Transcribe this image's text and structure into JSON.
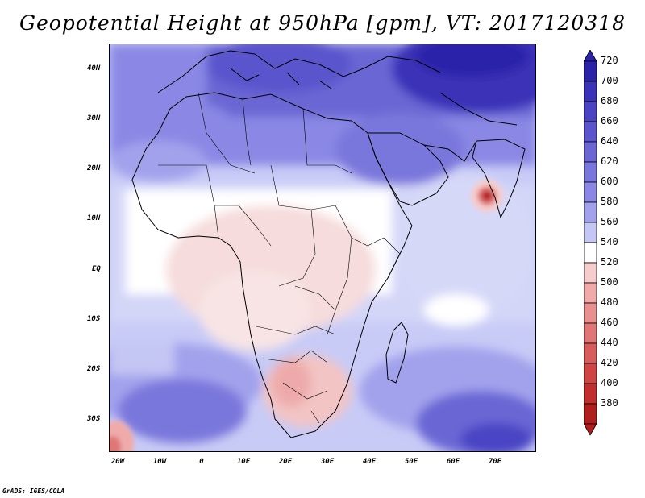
{
  "title": "Geopotential Height at 950hPa [gpm], VT: 2017120318",
  "footer": "GrADS: IGES/COLA",
  "latitude_labels": [
    "40N",
    "30N",
    "20N",
    "10N",
    "EQ",
    "10S",
    "20S",
    "30S"
  ],
  "longitude_labels": [
    "20W",
    "10W",
    "0",
    "10E",
    "20E",
    "30E",
    "40E",
    "50E",
    "60E",
    "70E"
  ],
  "colorbar": {
    "levels": [
      720,
      700,
      680,
      660,
      640,
      620,
      600,
      580,
      560,
      540,
      520,
      500,
      480,
      460,
      440,
      420,
      400,
      380
    ],
    "colors": [
      "#2a22a8",
      "#3a33b8",
      "#4a44c4",
      "#5a55cc",
      "#6a66d4",
      "#7a77dc",
      "#8a88e4",
      "#a2a2ec",
      "#c4c6f4",
      "#ffffff",
      "#f6cccc",
      "#f0aaaa",
      "#e89090",
      "#e07676",
      "#d85c5c",
      "#d04444",
      "#c22e2e",
      "#b01e1e"
    ]
  },
  "chart_data": {
    "type": "map-contour",
    "variable": "Geopotential Height",
    "level": "950hPa",
    "units": "gpm",
    "valid_time": "2017120318",
    "lon_range": [
      -23,
      80
    ],
    "lat_range": [
      -37,
      44
    ],
    "contour_levels": [
      380,
      400,
      420,
      440,
      460,
      480,
      500,
      520,
      540,
      560,
      580,
      600,
      620,
      640,
      660,
      680,
      700,
      720
    ]
  }
}
